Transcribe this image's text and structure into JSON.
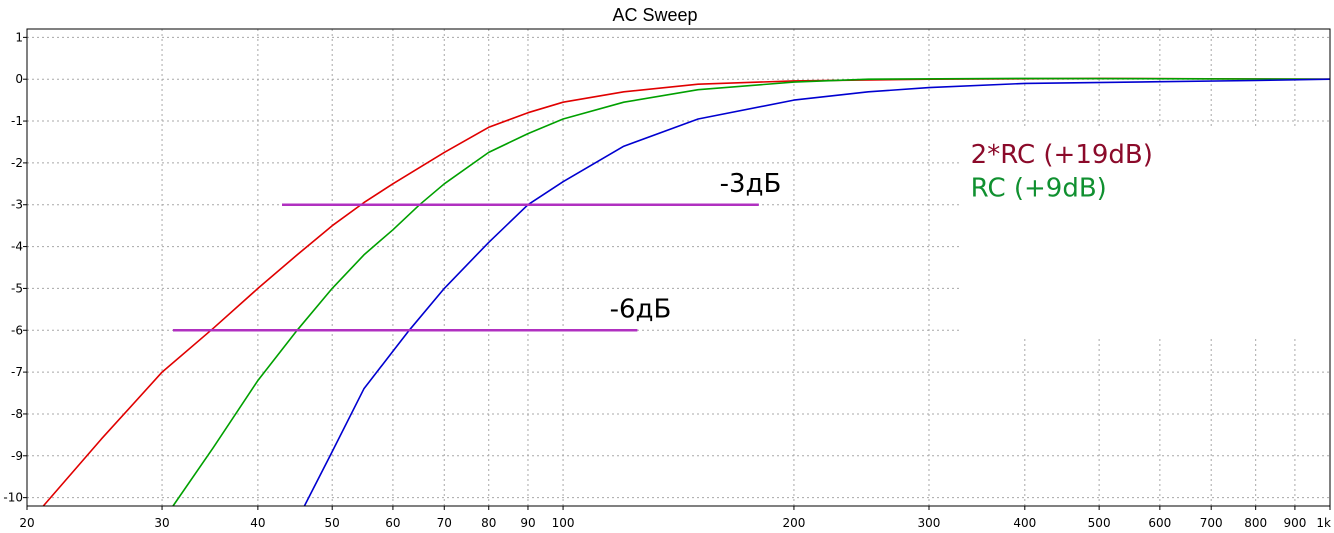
{
  "chart_data": {
    "type": "line",
    "title": "AC Sweep",
    "xlabel": "",
    "ylabel": "",
    "xscale": "log",
    "xlim": [
      20,
      1000
    ],
    "ylim": [
      -10.2,
      1.2
    ],
    "grid": true,
    "x_ticks": [
      {
        "value": 20,
        "label": "20"
      },
      {
        "value": 30,
        "label": "30"
      },
      {
        "value": 40,
        "label": "40"
      },
      {
        "value": 50,
        "label": "50"
      },
      {
        "value": 60,
        "label": "60"
      },
      {
        "value": 70,
        "label": "70"
      },
      {
        "value": 80,
        "label": "80"
      },
      {
        "value": 90,
        "label": "90"
      },
      {
        "value": 100,
        "label": "100"
      },
      {
        "value": 200,
        "label": "200"
      },
      {
        "value": 300,
        "label": "300"
      },
      {
        "value": 400,
        "label": "400"
      },
      {
        "value": 500,
        "label": "500"
      },
      {
        "value": 600,
        "label": "600"
      },
      {
        "value": 700,
        "label": "700"
      },
      {
        "value": 800,
        "label": "800"
      },
      {
        "value": 900,
        "label": "900"
      },
      {
        "value": 1000,
        "label": "1k"
      }
    ],
    "y_ticks": [
      {
        "value": 1,
        "label": "1"
      },
      {
        "value": 0,
        "label": "0"
      },
      {
        "value": -1,
        "label": "-1"
      },
      {
        "value": -2,
        "label": "-2"
      },
      {
        "value": -3,
        "label": "-3"
      },
      {
        "value": -4,
        "label": "-4"
      },
      {
        "value": -5,
        "label": "-5"
      },
      {
        "value": -6,
        "label": "-6"
      },
      {
        "value": -7,
        "label": "-7"
      },
      {
        "value": -8,
        "label": "-8"
      },
      {
        "value": -9,
        "label": "-9"
      },
      {
        "value": -10,
        "label": "-10"
      }
    ],
    "series": [
      {
        "color": "#e00000",
        "points": [
          [
            21,
            -10.2
          ],
          [
            25,
            -8.6
          ],
          [
            30,
            -7.0
          ],
          [
            35,
            -5.95
          ],
          [
            40,
            -5.0
          ],
          [
            45,
            -4.2
          ],
          [
            50,
            -3.5
          ],
          [
            55,
            -2.95
          ],
          [
            60,
            -2.5
          ],
          [
            70,
            -1.75
          ],
          [
            80,
            -1.15
          ],
          [
            90,
            -0.8
          ],
          [
            100,
            -0.55
          ],
          [
            120,
            -0.3
          ],
          [
            150,
            -0.12
          ],
          [
            200,
            -0.04
          ],
          [
            300,
            0.0
          ],
          [
            500,
            0.02
          ],
          [
            1000,
            0.0
          ]
        ]
      },
      {
        "color": "#00a000",
        "points": [
          [
            31,
            -10.2
          ],
          [
            35,
            -8.8
          ],
          [
            40,
            -7.2
          ],
          [
            45,
            -6.0
          ],
          [
            50,
            -5.0
          ],
          [
            55,
            -4.2
          ],
          [
            60,
            -3.6
          ],
          [
            65,
            -3.0
          ],
          [
            70,
            -2.5
          ],
          [
            80,
            -1.75
          ],
          [
            90,
            -1.3
          ],
          [
            100,
            -0.95
          ],
          [
            120,
            -0.55
          ],
          [
            150,
            -0.25
          ],
          [
            200,
            -0.07
          ],
          [
            250,
            0.0
          ],
          [
            400,
            0.02
          ],
          [
            1000,
            0.0
          ]
        ]
      },
      {
        "color": "#0000d0",
        "points": [
          [
            46,
            -10.2
          ],
          [
            50,
            -8.9
          ],
          [
            55,
            -7.4
          ],
          [
            60,
            -6.5
          ],
          [
            63,
            -6.0
          ],
          [
            70,
            -5.0
          ],
          [
            80,
            -3.9
          ],
          [
            90,
            -3.0
          ],
          [
            100,
            -2.45
          ],
          [
            120,
            -1.6
          ],
          [
            150,
            -0.95
          ],
          [
            200,
            -0.5
          ],
          [
            250,
            -0.3
          ],
          [
            300,
            -0.2
          ],
          [
            400,
            -0.1
          ],
          [
            600,
            -0.06
          ],
          [
            800,
            -0.03
          ],
          [
            1000,
            0.0
          ]
        ]
      },
      {
        "color": "#b030c0",
        "points": [
          [
            43,
            -3.0
          ],
          [
            180,
            -3.0
          ]
        ]
      },
      {
        "color": "#b030c0",
        "points": [
          [
            31,
            -6.0
          ],
          [
            125,
            -6.0
          ]
        ]
      }
    ],
    "annotations": [
      {
        "text": "-3дБ",
        "x": 160,
        "y": -2.7,
        "color": "#000000"
      },
      {
        "text": "-6дБ",
        "x": 115,
        "y": -5.7,
        "color": "#000000"
      },
      {
        "text": "2*RC (+19dB)",
        "x": 340,
        "y": -2.0,
        "color": "#8b0a2a"
      },
      {
        "text": "RC (+9dB)",
        "x": 340,
        "y": -2.8,
        "color": "#109030"
      }
    ]
  }
}
